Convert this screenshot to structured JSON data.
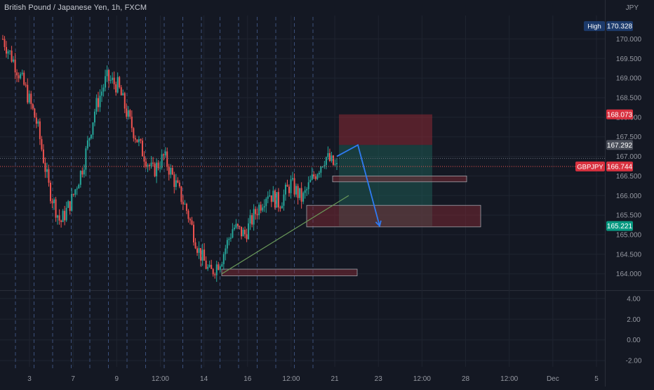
{
  "header": {
    "symbol_title": "British Pound / Japanese Yen, 1h, FXCM",
    "currency": "JPY"
  },
  "colors": {
    "background": "#141823",
    "grid": "#1f2430",
    "bull": "#26a69a",
    "bear": "#ef5350",
    "axis_text": "#9598a1",
    "session_line": "#3b4f7a",
    "arrow": "#2f7bf3",
    "stop_zone": "#8b2a35",
    "target_zone": "#1d5f57",
    "trendline": "#6b9b5a"
  },
  "chart_data": [
    {
      "type": "candlestick",
      "title": "British Pound / Japanese Yen, 1h, FXCM",
      "ylim": [
        163.6,
        170.6
      ],
      "x_ticks": [
        "3",
        "7",
        "9",
        "12:00",
        "14",
        "16",
        "12:00",
        "21",
        "23",
        "12:00",
        "28",
        "12:00",
        "Dec",
        "5"
      ],
      "y_ticks": [
        "170.000",
        "169.500",
        "169.000",
        "168.500",
        "168.000",
        "167.500",
        "167.000",
        "166.500",
        "166.000",
        "165.500",
        "165.000",
        "164.500",
        "164.000"
      ],
      "grid": true,
      "price_path": [
        {
          "x": "3",
          "close": 170.0
        },
        {
          "x": "",
          "close": 169.4
        },
        {
          "x": "",
          "close": 168.7
        },
        {
          "x": "",
          "close": 167.8
        },
        {
          "x": "",
          "close": 166.2
        },
        {
          "x": "",
          "close": 165.3
        },
        {
          "x": "7",
          "close": 165.9
        },
        {
          "x": "",
          "close": 166.8
        },
        {
          "x": "",
          "close": 168.2
        },
        {
          "x": "9",
          "close": 169.0
        },
        {
          "x": "",
          "close": 168.8
        },
        {
          "x": "",
          "close": 167.9
        },
        {
          "x": "",
          "close": 167.2
        },
        {
          "x": "",
          "close": 166.6
        },
        {
          "x": "",
          "close": 167.0
        },
        {
          "x": "12:00",
          "close": 166.3
        },
        {
          "x": "",
          "close": 165.6
        },
        {
          "x": "",
          "close": 164.6
        },
        {
          "x": "14",
          "close": 164.0
        },
        {
          "x": "",
          "close": 164.4
        },
        {
          "x": "",
          "close": 165.2
        },
        {
          "x": "",
          "close": 165.0
        },
        {
          "x": "16",
          "close": 165.6
        },
        {
          "x": "",
          "close": 166.1
        },
        {
          "x": "",
          "close": 165.8
        },
        {
          "x": "",
          "close": 166.3
        },
        {
          "x": "12:00",
          "close": 165.9
        },
        {
          "x": "",
          "close": 166.5
        },
        {
          "x": "",
          "close": 167.0
        },
        {
          "x": "",
          "close": 166.7
        }
      ],
      "markers": [
        {
          "label": "High",
          "value": "170.328"
        },
        {
          "label": "",
          "value": "168.073"
        },
        {
          "label": "",
          "value": "167.292"
        },
        {
          "label": "GBPJPY",
          "value": "166.744"
        },
        {
          "label": "",
          "value": "165.221"
        }
      ],
      "zones": [
        {
          "kind": "stop",
          "from": 167.292,
          "to": 168.073
        },
        {
          "kind": "target",
          "from": 165.221,
          "to": 167.292
        },
        {
          "kind": "supply",
          "from": 166.35,
          "to": 166.5
        },
        {
          "kind": "supply",
          "from": 165.2,
          "to": 165.75
        },
        {
          "kind": "supply",
          "from": 163.95,
          "to": 164.12
        }
      ],
      "trendline": {
        "from": [
          164.0
        ],
        "to": [
          166.0
        ]
      },
      "projection": [
        167.0,
        167.292,
        165.221
      ]
    },
    {
      "type": "line",
      "title": "",
      "ylim": [
        -2.6,
        4.6
      ],
      "y_ticks": [
        "4.00",
        "2.00",
        "0.00",
        "-2.00"
      ],
      "series": []
    }
  ]
}
